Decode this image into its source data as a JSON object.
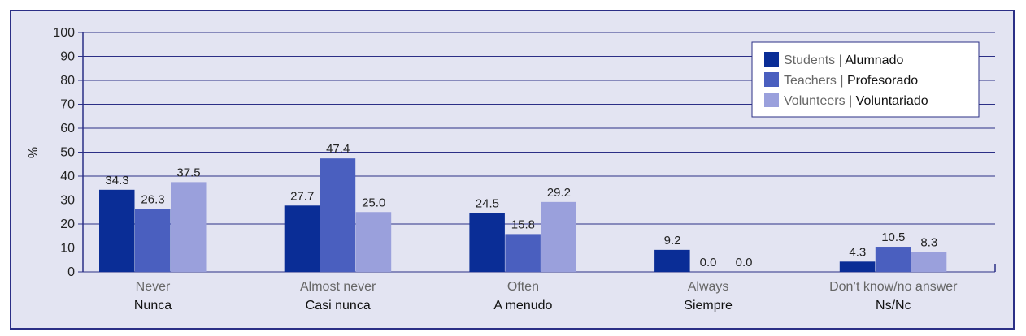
{
  "chart_data": {
    "type": "bar",
    "ylabel": "%",
    "ylim": [
      0,
      100
    ],
    "yticks": [
      0,
      10,
      20,
      30,
      40,
      50,
      60,
      70,
      80,
      90,
      100
    ],
    "grid": true,
    "legend_position": "top-right",
    "categories": [
      {
        "en": "Never",
        "es": "Nunca"
      },
      {
        "en": "Almost never",
        "es": "Casi nunca"
      },
      {
        "en": "Often",
        "es": "A menudo"
      },
      {
        "en": "Always",
        "es": "Siempre"
      },
      {
        "en": "Don’t know/no answer",
        "es": "Ns/Nc"
      }
    ],
    "series": [
      {
        "name_en": "Students",
        "name_es": "Alumnado",
        "color": "#0a2d96",
        "values": [
          34.3,
          27.7,
          24.5,
          9.2,
          4.3
        ]
      },
      {
        "name_en": "Teachers",
        "name_es": "Profesorado",
        "color": "#4a5fbf",
        "values": [
          26.3,
          47.4,
          15.8,
          0.0,
          10.5
        ]
      },
      {
        "name_en": "Volunteers",
        "name_es": "Voluntariado",
        "color": "#9aa0dc",
        "values": [
          37.5,
          25.0,
          29.2,
          0.0,
          8.3
        ]
      }
    ]
  }
}
